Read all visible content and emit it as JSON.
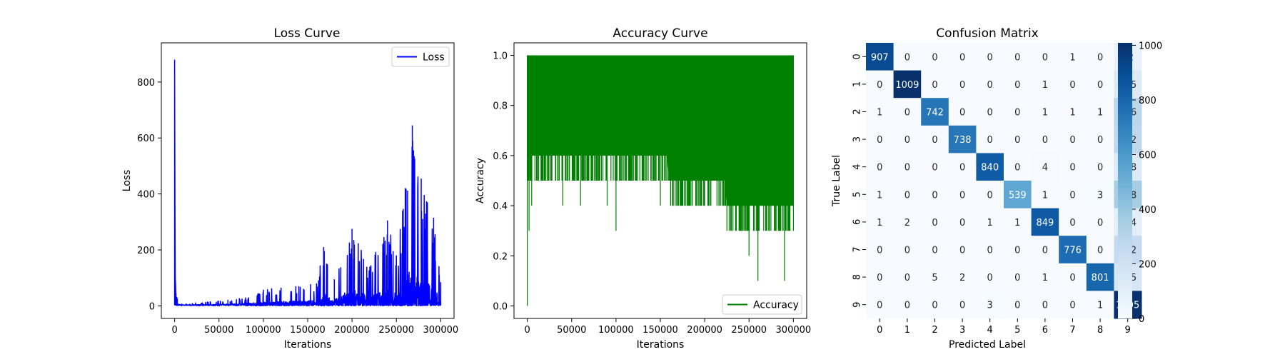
{
  "chart_data": [
    {
      "type": "line",
      "title": "Loss Curve",
      "xlabel": "Iterations",
      "ylabel": "Loss",
      "xlim": [
        -15000,
        315000
      ],
      "ylim": [
        -45,
        940
      ],
      "xticks": [
        0,
        50000,
        100000,
        150000,
        200000,
        250000,
        300000
      ],
      "xtick_labels": [
        "0",
        "50000",
        "100000",
        "150000",
        "200000",
        "250000",
        "300000"
      ],
      "yticks": [
        0,
        200,
        400,
        600,
        800
      ],
      "ytick_labels": [
        "0",
        "200",
        "400",
        "600",
        "800"
      ],
      "grid": false,
      "legend_position": "top-right",
      "series": [
        {
          "name": "Loss",
          "color": "#0000ff",
          "x": [
            0,
            500,
            1500,
            3000,
            8000,
            20000,
            40000,
            60000,
            80000,
            100000,
            120000,
            140000,
            160000,
            168000,
            180000,
            200000,
            220000,
            240000,
            250000,
            257000,
            268000,
            278000,
            285000,
            292000,
            300000
          ],
          "y": [
            880,
            110,
            45,
            25,
            8,
            10,
            15,
            22,
            30,
            58,
            65,
            70,
            80,
            210,
            95,
            275,
            140,
            305,
            180,
            340,
            645,
            455,
            370,
            315,
            85
          ]
        }
      ]
    },
    {
      "type": "line",
      "title": "Accuracy Curve",
      "xlabel": "Iterations",
      "ylabel": "Accuracy",
      "xlim": [
        -15000,
        315000
      ],
      "ylim": [
        -0.05,
        1.05
      ],
      "xticks": [
        0,
        50000,
        100000,
        150000,
        200000,
        250000,
        300000
      ],
      "xtick_labels": [
        "0",
        "50000",
        "100000",
        "150000",
        "200000",
        "250000",
        "300000"
      ],
      "yticks": [
        0.0,
        0.2,
        0.4,
        0.6,
        0.8,
        1.0
      ],
      "ytick_labels": [
        "0.0",
        "0.2",
        "0.4",
        "0.6",
        "0.8",
        "1.0"
      ],
      "grid": false,
      "legend_position": "bottom-right",
      "series": [
        {
          "name": "Accuracy",
          "color": "#008000",
          "x": [
            0,
            2000,
            5000,
            20000,
            40000,
            60000,
            90000,
            100000,
            150000,
            200000,
            230000,
            250000,
            260000,
            290000,
            300000
          ],
          "y": [
            0.0,
            0.3,
            0.4,
            0.5,
            0.4,
            0.4,
            0.4,
            0.3,
            0.4,
            0.4,
            0.3,
            0.2,
            0.1,
            0.1,
            0.3
          ],
          "max": 1.0
        }
      ]
    },
    {
      "type": "heatmap",
      "title": "Confusion Matrix",
      "xlabel": "Predicted Label",
      "ylabel": "True Label",
      "x_categories": [
        "0",
        "1",
        "2",
        "3",
        "4",
        "5",
        "6",
        "7",
        "8",
        "9"
      ],
      "y_categories": [
        "0",
        "1",
        "2",
        "3",
        "4",
        "5",
        "6",
        "7",
        "8",
        "9"
      ],
      "values": [
        [
          907,
          0,
          0,
          0,
          0,
          0,
          0,
          1,
          0,
          72
        ],
        [
          0,
          1009,
          0,
          0,
          0,
          0,
          1,
          0,
          0,
          125
        ],
        [
          1,
          0,
          742,
          0,
          0,
          0,
          1,
          1,
          1,
          286
        ],
        [
          0,
          0,
          0,
          738,
          0,
          0,
          0,
          0,
          0,
          272
        ],
        [
          0,
          0,
          0,
          0,
          840,
          0,
          4,
          0,
          0,
          138
        ],
        [
          1,
          0,
          0,
          0,
          0,
          539,
          1,
          0,
          3,
          348
        ],
        [
          1,
          2,
          0,
          0,
          1,
          1,
          849,
          0,
          0,
          104
        ],
        [
          0,
          0,
          0,
          0,
          0,
          0,
          0,
          776,
          0,
          252
        ],
        [
          0,
          0,
          5,
          2,
          0,
          0,
          1,
          0,
          801,
          165
        ],
        [
          0,
          0,
          0,
          0,
          3,
          0,
          0,
          0,
          1,
          1005
        ]
      ],
      "colorscale": "Blues",
      "vmin": 0,
      "vmax": 1009,
      "colorbar_ticks": [
        0,
        200,
        400,
        600,
        800,
        1000
      ],
      "colorbar_tick_labels": [
        "0",
        "200",
        "400",
        "600",
        "800",
        "1000"
      ]
    }
  ]
}
